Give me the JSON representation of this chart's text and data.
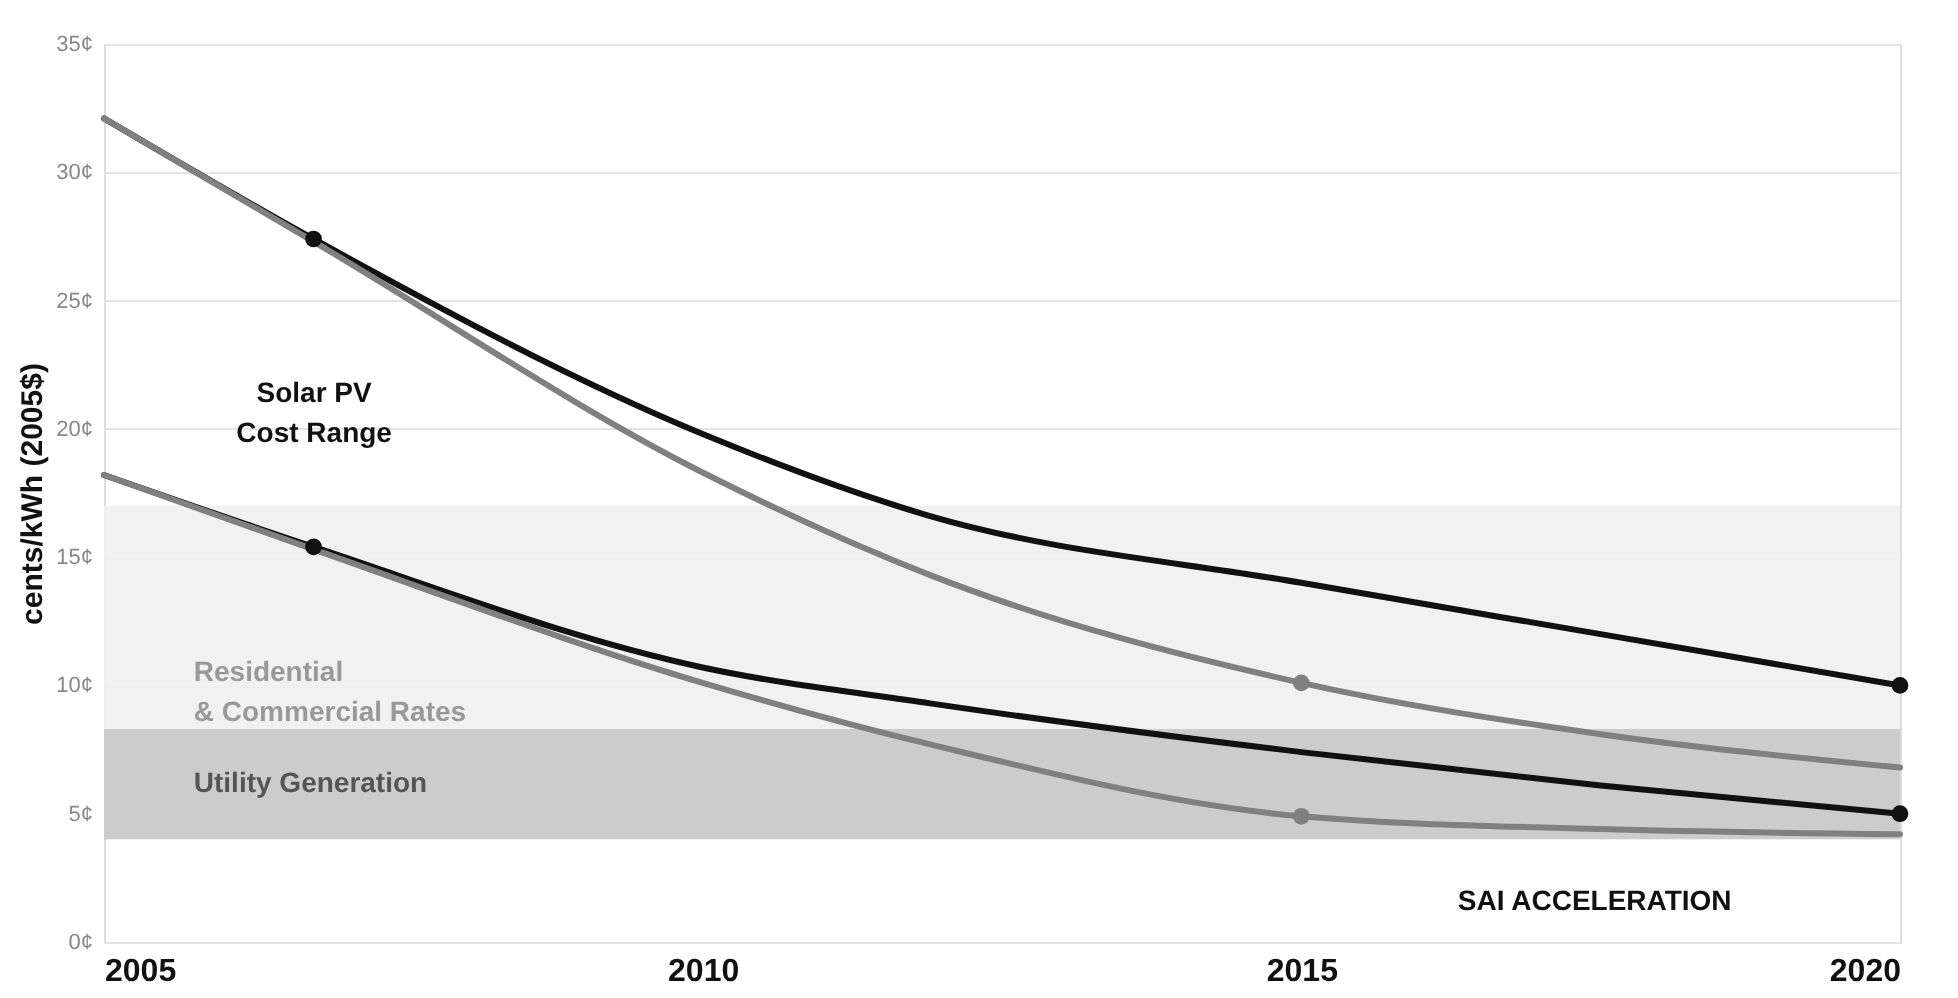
{
  "chart_data": {
    "type": "line",
    "ylabel": "cents/kWh (2005$)",
    "xlim": [
      2005,
      2020
    ],
    "xticks": [
      2005,
      2010,
      2015,
      2020
    ],
    "ylim": [
      0,
      35
    ],
    "yticks": [
      {
        "value": 0,
        "label": "0¢"
      },
      {
        "value": 5,
        "label": "5¢"
      },
      {
        "value": 10,
        "label": "10¢"
      },
      {
        "value": 15,
        "label": "15¢"
      },
      {
        "value": 20,
        "label": "20¢"
      },
      {
        "value": 25,
        "label": "25¢"
      },
      {
        "value": 30,
        "label": "30¢"
      },
      {
        "value": 35,
        "label": "35¢"
      }
    ],
    "grid": "y",
    "line_style": "solid",
    "series": [
      {
        "color": "#111111",
        "x": [
          2005,
          2006.75,
          2010,
          2011.9,
          2015,
          2017.5,
          2020
        ],
        "values": [
          32.1,
          27.4,
          19.8,
          16.6,
          14.0,
          12.0,
          10.0
        ]
      },
      {
        "color": "#808080",
        "x": [
          2005,
          2006.75,
          2010,
          2011.9,
          2015,
          2017.5,
          2020
        ],
        "values": [
          32.1,
          27.3,
          18.3,
          14.3,
          10.1,
          8.1,
          6.8
        ]
      },
      {
        "color": "#111111",
        "x": [
          2005,
          2006.75,
          2010,
          2011.9,
          2015,
          2017.5,
          2020
        ],
        "values": [
          18.2,
          15.4,
          10.7,
          9.3,
          7.4,
          6.1,
          5.0
        ]
      },
      {
        "color": "#808080",
        "x": [
          2005,
          2006.75,
          2010,
          2011.9,
          2015,
          2017.5,
          2020
        ],
        "values": [
          18.2,
          15.3,
          10.1,
          7.7,
          4.9,
          4.4,
          4.2
        ]
      },
      {
        "type": "scatter",
        "color": "#111111",
        "x": [
          2006.75,
          2006.75,
          2020,
          2020
        ],
        "values": [
          27.4,
          15.4,
          10.0,
          5.0
        ]
      },
      {
        "type": "scatter",
        "color": "#808080",
        "x": [
          2015,
          2015
        ],
        "values": [
          10.1,
          4.9
        ]
      }
    ],
    "bands": [
      {
        "axis": "y",
        "from": 4,
        "to": 17,
        "label": "Residential\n& Commercial Rates",
        "color": "#f0f0f0"
      },
      {
        "axis": "y",
        "from": 4,
        "to": 8.3,
        "label": "Utility Generation",
        "color": "#c8c8c8"
      }
    ],
    "annotations": [
      "Solar PV\nCost Range",
      "SAI ACCELERATION"
    ]
  }
}
